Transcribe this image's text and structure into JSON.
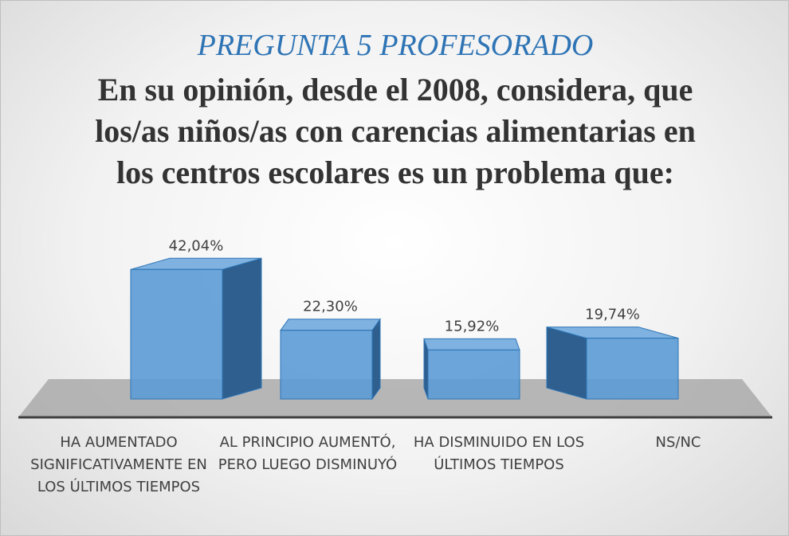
{
  "chart_data": {
    "type": "bar3d",
    "title": "PREGUNTA 5 PROFESORADO",
    "subtitle": "En su opinión, desde el 2008, considera, que los/as niños/as con carencias alimentarias en los centros escolares es un problema que:",
    "categories": [
      "HA AUMENTADO SIGNIFICATIVAMENTE EN LOS ÚLTIMOS TIEMPOS",
      "AL PRINCIPIO AUMENTÓ, PERO LUEGO DISMINUYÓ",
      "HA DISMINUIDO EN LOS ÚLTIMOS TIEMPOS",
      "NS/NC"
    ],
    "values": [
      42.04,
      22.3,
      15.92,
      19.74
    ],
    "value_labels": [
      "42,04%",
      "22,30%",
      "15,92%",
      "19,74%"
    ],
    "color": "#5b9bd5"
  }
}
